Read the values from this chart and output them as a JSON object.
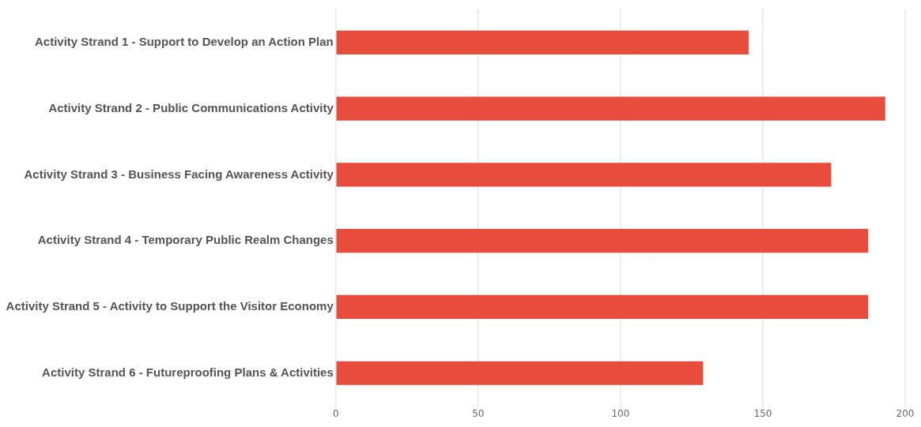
{
  "chart_data": {
    "type": "bar",
    "orientation": "horizontal",
    "categories": [
      "Activity Strand 1 - Support to Develop an Action Plan",
      "Activity Strand 2 - Public Communications Activity",
      "Activity Strand 3 - Business Facing Awareness Activity",
      "Activity Strand 4 - Temporary Public Realm Changes",
      "Activity Strand 5 - Activity to Support the Visitor Economy",
      "Activity Strand 6 - Futureproofing Plans & Activities"
    ],
    "values": [
      145,
      193,
      174,
      187,
      187,
      129
    ],
    "color": "#e84c3d",
    "xlim": [
      0,
      200
    ],
    "xticks": [
      0,
      50,
      100,
      150,
      200
    ],
    "grid": "x"
  }
}
